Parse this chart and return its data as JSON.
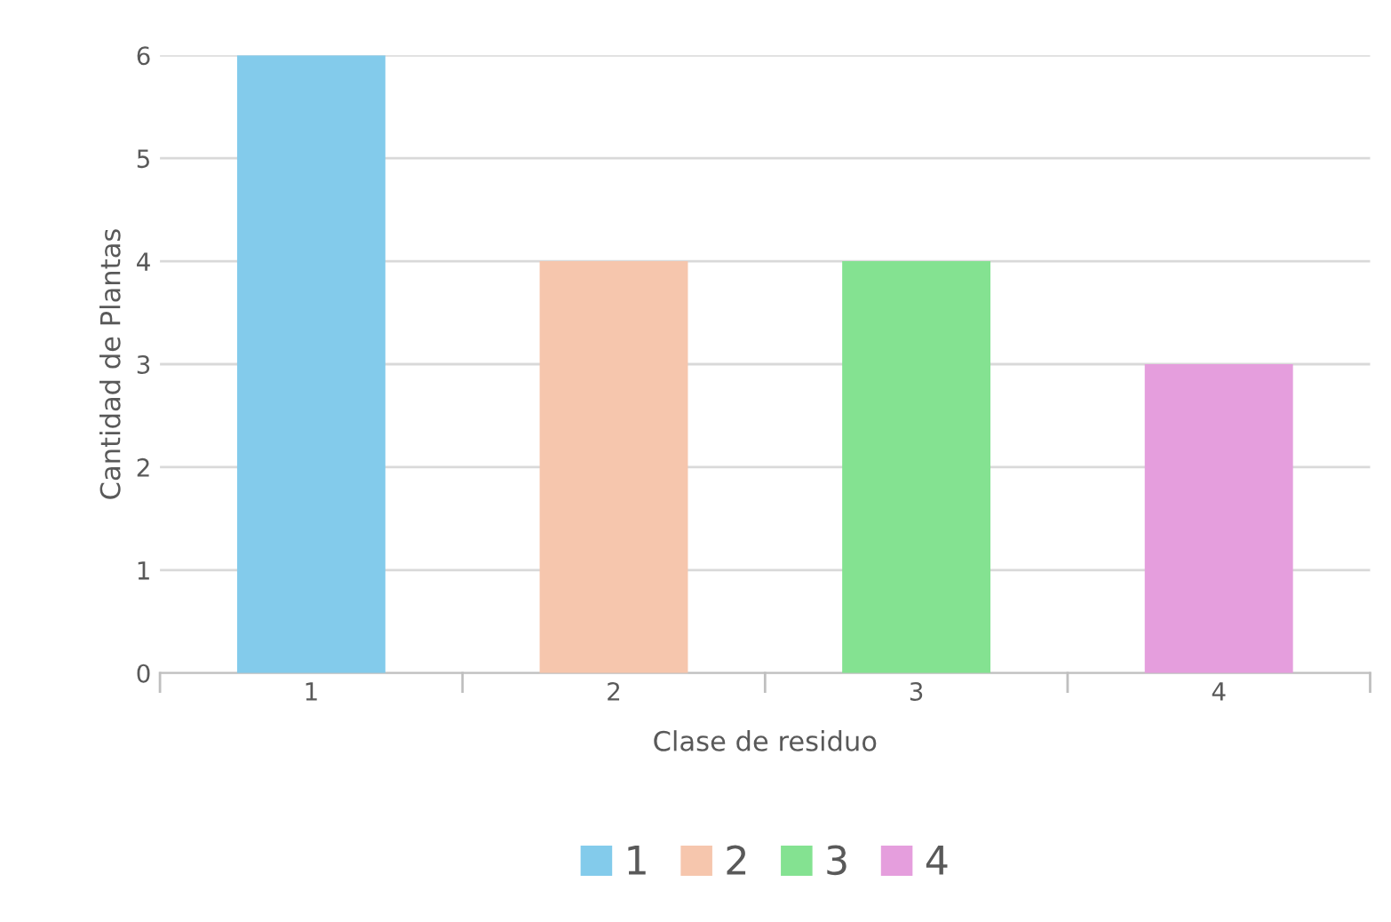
{
  "chart_data": {
    "type": "bar",
    "xlabel": "Clase de residuo",
    "ylabel": "Cantidad de Plantas",
    "categories": [
      "1",
      "2",
      "3",
      "4"
    ],
    "series": [
      {
        "name": "1",
        "color": "#83cbeb",
        "values": [
          6,
          null,
          null,
          null
        ]
      },
      {
        "name": "2",
        "color": "#f6c6ad",
        "values": [
          null,
          4,
          null,
          null
        ]
      },
      {
        "name": "3",
        "color": "#84e291",
        "values": [
          null,
          null,
          4,
          null
        ]
      },
      {
        "name": "4",
        "color": "#e59edd",
        "values": [
          null,
          null,
          null,
          3
        ]
      }
    ],
    "ylim": [
      0,
      6
    ],
    "yticks": [
      0,
      1,
      2,
      3,
      4,
      5,
      6
    ],
    "grid": "y",
    "legend": "bottom"
  }
}
